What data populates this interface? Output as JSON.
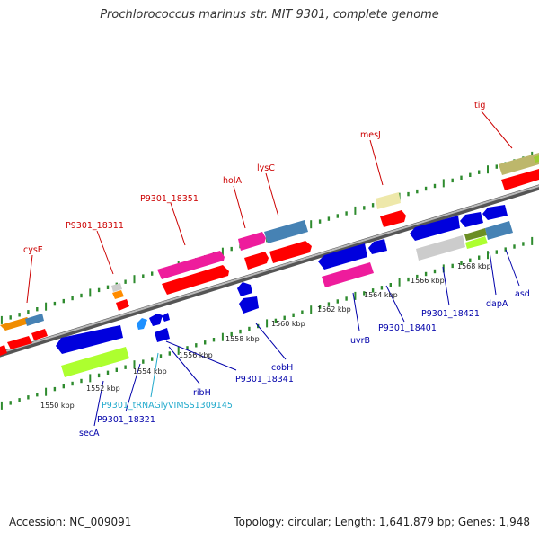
{
  "title": "Prochlorococcus marinus str. MIT 9301, complete genome",
  "footer": {
    "accession": "Accession: NC_009091",
    "stats": "Topology: circular; Length: 1,641,879 bp; Genes: 1,948"
  },
  "colors": {
    "backbone": "#888888",
    "tick": "#2e8b2e",
    "label_forward": "#cc0000",
    "label_reverse": "#0000aa",
    "label_trna": "#22aacc"
  },
  "kbp_labels": [
    "1550 kbp",
    "1552 kbp",
    "1554 kbp",
    "1556 kbp",
    "1558 kbp",
    "1560 kbp",
    "1562 kbp",
    "1564 kbp",
    "1566 kbp",
    "1568 kbp"
  ],
  "genes_forward": [
    "cysE",
    "P9301_18311",
    "P9301_18351",
    "holA",
    "lysC",
    "mesJ",
    "tig"
  ],
  "genes_reverse": [
    "secA",
    "P9301_18321",
    "P9301_tRNAGlyVIMSS1309145",
    "ribH",
    "P9301_18341",
    "cobH",
    "uvrB",
    "P9301_18401",
    "P9301_18421",
    "dapA",
    "asd"
  ]
}
